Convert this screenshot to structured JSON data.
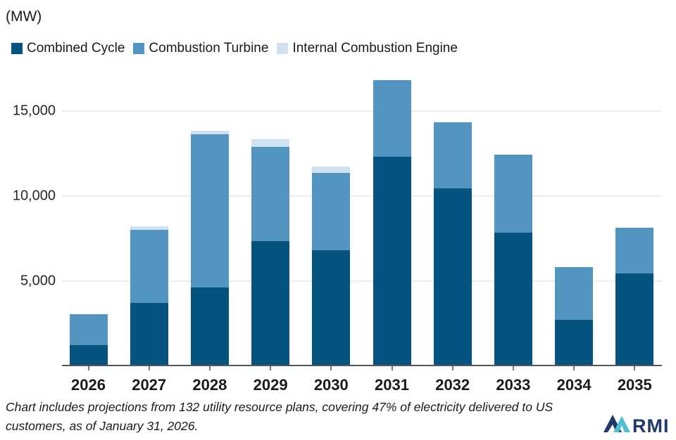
{
  "unit_label": "(MW)",
  "footnote": {
    "text": "Chart includes projections from 132 utility resource plans, covering 47% of electricity delivered to US customers, as of January 31, 2026."
  },
  "logo": {
    "text": "RMI",
    "navy": "#1f3a68",
    "teal": "#4ec0cf"
  },
  "axis_colors": {
    "gridline": "#ececec",
    "axis_line": "#55565a",
    "text": "#1a1a1a"
  },
  "chart_data": {
    "type": "bar",
    "stacked": true,
    "title": "",
    "xlabel": "",
    "ylabel": "(MW)",
    "ylim": [
      0,
      17200
    ],
    "yticks": [
      5000,
      10000,
      15000
    ],
    "ytick_labels": [
      "5,000",
      "10,000",
      "15,000"
    ],
    "grid": "horizontal",
    "legend_position": "top-left",
    "categories": [
      "2026",
      "2027",
      "2028",
      "2029",
      "2030",
      "2031",
      "2032",
      "2033",
      "2034",
      "2035"
    ],
    "series": [
      {
        "name": "Combined Cycle",
        "color": "#05547f",
        "values": [
          1200,
          3700,
          4600,
          7300,
          6800,
          12300,
          10400,
          7800,
          2700,
          5400
        ]
      },
      {
        "name": "Combustion Turbine",
        "color": "#5395c1",
        "values": [
          1800,
          4300,
          9000,
          5550,
          4550,
          4500,
          3900,
          4600,
          3100,
          2700
        ]
      },
      {
        "name": "Internal Combustion Engine",
        "color": "#cfe1f1",
        "values": [
          0,
          200,
          200,
          450,
          350,
          0,
          0,
          0,
          0,
          0
        ]
      }
    ]
  }
}
